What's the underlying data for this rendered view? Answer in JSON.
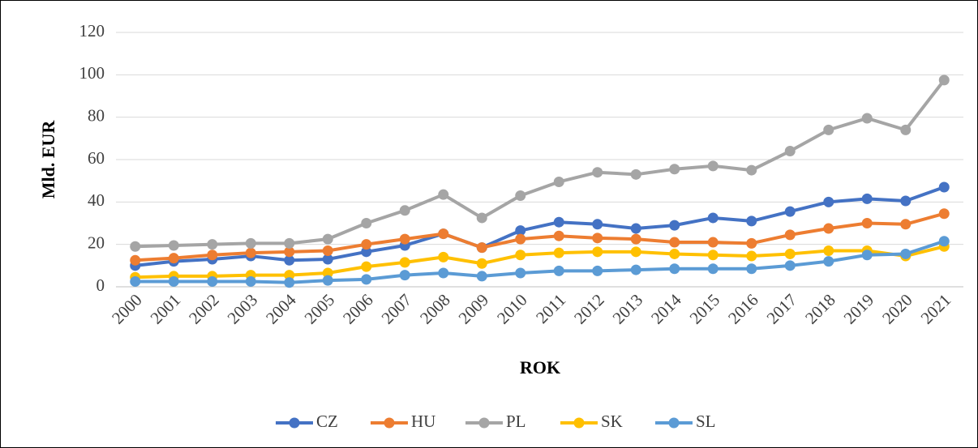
{
  "chart_data": {
    "type": "line",
    "x_label": "ROK",
    "y_label": "Mld. EUR",
    "categories": [
      "2000",
      "2001",
      "2002",
      "2003",
      "2004",
      "2005",
      "2006",
      "2007",
      "2008",
      "2009",
      "2010",
      "2011",
      "2012",
      "2013",
      "2014",
      "2015",
      "2016",
      "2017",
      "2018",
      "2019",
      "2020",
      "2021"
    ],
    "series": [
      {
        "name": "CZ",
        "color": "#4472c4",
        "values": [
          10,
          12,
          13,
          14.5,
          12.5,
          13,
          16.5,
          19.5,
          25,
          18.5,
          26.5,
          30.5,
          29.5,
          27.5,
          29,
          32.5,
          31,
          35.5,
          40,
          41.5,
          40.5,
          47
        ]
      },
      {
        "name": "HU",
        "color": "#ed7d31",
        "values": [
          12.5,
          13.5,
          15,
          16,
          16.5,
          17,
          20,
          22.5,
          25,
          18.5,
          22.5,
          24,
          23,
          22.5,
          21,
          21,
          20.5,
          24.5,
          27.5,
          30,
          29.5,
          34.5
        ]
      },
      {
        "name": "PL",
        "color": "#a5a5a5",
        "values": [
          19,
          19.5,
          20,
          20.5,
          20.5,
          22.5,
          30,
          36,
          43.5,
          32.5,
          43,
          49.5,
          54,
          53,
          55.5,
          57,
          55,
          64,
          74,
          79.5,
          74,
          97.5
        ]
      },
      {
        "name": "SK",
        "color": "#ffc000",
        "values": [
          4.5,
          5,
          5,
          5.5,
          5.5,
          6.5,
          9.5,
          11.5,
          14,
          11,
          15,
          16,
          16.5,
          16.5,
          15.5,
          15,
          14.5,
          15.5,
          17,
          17,
          14.5,
          19
        ]
      },
      {
        "name": "SL",
        "color": "#5b9bd5",
        "values": [
          2.5,
          2.5,
          2.5,
          2.5,
          2,
          3,
          3.5,
          5.5,
          6.5,
          5,
          6.5,
          7.5,
          7.5,
          8,
          8.5,
          8.5,
          8.5,
          10,
          12,
          15,
          15.5,
          21.5
        ]
      }
    ],
    "ylim": [
      0,
      120
    ],
    "yticks": [
      0,
      20,
      40,
      60,
      80,
      100,
      120
    ],
    "grid": true,
    "legend": "bottom"
  }
}
